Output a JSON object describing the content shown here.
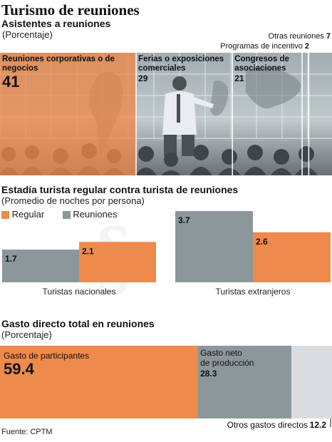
{
  "title": "Turismo de reuniones",
  "colors": {
    "regular": "#ee8a4b",
    "reuniones": "#8b979b",
    "otros": "#d9dde0",
    "text": "#111111"
  },
  "section1": {
    "heading": "Asistentes a reuniones",
    "subheading": "(Porcentaje)",
    "segments": [
      {
        "label": "Reuniones corporativas o de negocios",
        "value": 41
      },
      {
        "label": "Ferias o exposiciones comerciales",
        "value": 29
      },
      {
        "label": "Congresos de asociaciones",
        "value": 21
      },
      {
        "label": "Programas de incentivo",
        "value": 2
      },
      {
        "label": "Otras reuniones",
        "value": 7
      }
    ]
  },
  "section2": {
    "heading": "Estadía turista regular contra turista de reuniones",
    "subheading": "(Promedio de noches por persona)",
    "legend": {
      "regular": "Regular",
      "reuniones": "Reuniones"
    },
    "groups": [
      {
        "name": "Turistas nacionales",
        "reuniones": "1.7",
        "regular": "2.1"
      },
      {
        "name": "Turistas extranjeros",
        "reuniones": "3.7",
        "regular": "2.6"
      }
    ]
  },
  "section3": {
    "heading": "Gasto directo total en reuniones",
    "subheading": "(Porcentaje)",
    "segments": [
      {
        "label": "Gasto de participantes",
        "value": "59.4"
      },
      {
        "label": "Gasto neto de producción",
        "value": "28.3"
      },
      {
        "label": "Otros gastos directos",
        "value": "12.2"
      }
    ]
  },
  "source": "Fuente: CPTM",
  "chart_data": [
    {
      "type": "bar",
      "title": "Asistentes a reuniones",
      "subtitle": "(Porcentaje)",
      "categories": [
        "Reuniones corporativas o de negocios",
        "Ferias o exposiciones comerciales",
        "Congresos de asociaciones",
        "Programas de incentivo",
        "Otras reuniones"
      ],
      "values": [
        41,
        29,
        21,
        2,
        7
      ],
      "stacked": true,
      "orientation": "horizontal",
      "unit": "%"
    },
    {
      "type": "bar",
      "title": "Estadía turista regular contra turista de reuniones",
      "subtitle": "(Promedio de noches por persona)",
      "categories": [
        "Turistas nacionales",
        "Turistas extranjeros"
      ],
      "series": [
        {
          "name": "Reuniones",
          "values": [
            1.7,
            3.7
          ]
        },
        {
          "name": "Regular",
          "values": [
            2.1,
            2.6
          ]
        }
      ],
      "legend": "top-left",
      "grid": false
    },
    {
      "type": "bar",
      "title": "Gasto directo total en reuniones",
      "subtitle": "(Porcentaje)",
      "categories": [
        "Gasto de participantes",
        "Gasto neto de producción",
        "Otros gastos directos"
      ],
      "values": [
        59.4,
        28.3,
        12.2
      ],
      "stacked": true,
      "orientation": "horizontal",
      "unit": "%"
    }
  ]
}
